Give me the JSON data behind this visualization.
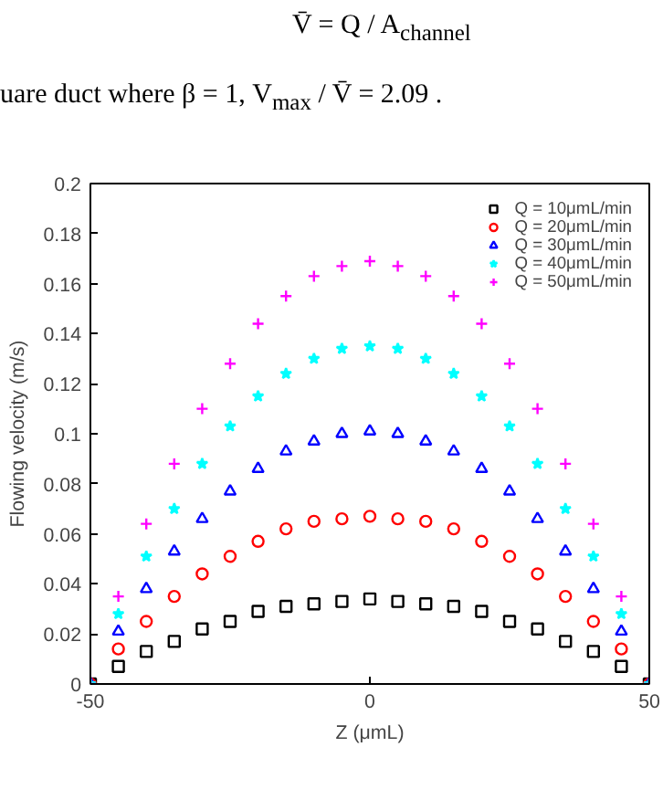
{
  "chart_data": {
    "type": "scatter",
    "xlabel": "Z (μmL)",
    "ylabel": "Flowing velocity (m/s)",
    "annotations": [
      "V̄ = Q / A$_{channel}$",
      "uare duct where β = 1, V$_{max}$ / V̄ = 2.09 ."
    ],
    "x": [
      -50,
      -45,
      -40,
      -35,
      -30,
      -25,
      -20,
      -15,
      -10,
      -5,
      0,
      5,
      10,
      15,
      20,
      25,
      30,
      35,
      40,
      45,
      50
    ],
    "series": [
      {
        "name": "Q = 10μmL/min",
        "color": "#000000",
        "marker": "square",
        "values": [
          0,
          0.007,
          0.013,
          0.017,
          0.022,
          0.025,
          0.029,
          0.031,
          0.032,
          0.033,
          0.034,
          0.033,
          0.032,
          0.031,
          0.029,
          0.025,
          0.022,
          0.017,
          0.013,
          0.007,
          0
        ]
      },
      {
        "name": "Q = 20μmL/min",
        "color": "#ff0000",
        "marker": "circle",
        "values": [
          0,
          0.014,
          0.025,
          0.035,
          0.044,
          0.051,
          0.057,
          0.062,
          0.065,
          0.066,
          0.067,
          0.066,
          0.065,
          0.062,
          0.057,
          0.051,
          0.044,
          0.035,
          0.025,
          0.014,
          0
        ]
      },
      {
        "name": "Q = 30μmL/min",
        "color": "#0000ff",
        "marker": "triangle",
        "values": [
          0,
          0.021,
          0.038,
          0.053,
          0.066,
          0.077,
          0.086,
          0.093,
          0.097,
          0.1,
          0.101,
          0.1,
          0.097,
          0.093,
          0.086,
          0.077,
          0.066,
          0.053,
          0.038,
          0.021,
          0
        ]
      },
      {
        "name": "Q = 40μmL/min",
        "color": "#00ffff",
        "marker": "star",
        "values": [
          0,
          0.028,
          0.051,
          0.07,
          0.088,
          0.103,
          0.115,
          0.124,
          0.13,
          0.134,
          0.135,
          0.134,
          0.13,
          0.124,
          0.115,
          0.103,
          0.088,
          0.07,
          0.051,
          0.028,
          0
        ]
      },
      {
        "name": "Q = 50μmL/min",
        "color": "#ff00ff",
        "marker": "cross",
        "values": [
          0,
          0.035,
          0.064,
          0.088,
          0.11,
          0.128,
          0.144,
          0.155,
          0.163,
          0.167,
          0.169,
          0.167,
          0.163,
          0.155,
          0.144,
          0.128,
          0.11,
          0.088,
          0.064,
          0.035,
          0
        ]
      }
    ],
    "xlim": [
      -50,
      50
    ],
    "ylim": [
      0,
      0.2
    ],
    "xticks": [
      -50,
      0,
      50
    ],
    "yticks": [
      0,
      0.02,
      0.04,
      0.06,
      0.08,
      {
        "value": 0.1,
        "label": "0.1"
      },
      0.12,
      0.14,
      0.16,
      0.18,
      {
        "value": 0.2,
        "label": "0.2"
      }
    ],
    "grid": false,
    "legend": "top right"
  }
}
